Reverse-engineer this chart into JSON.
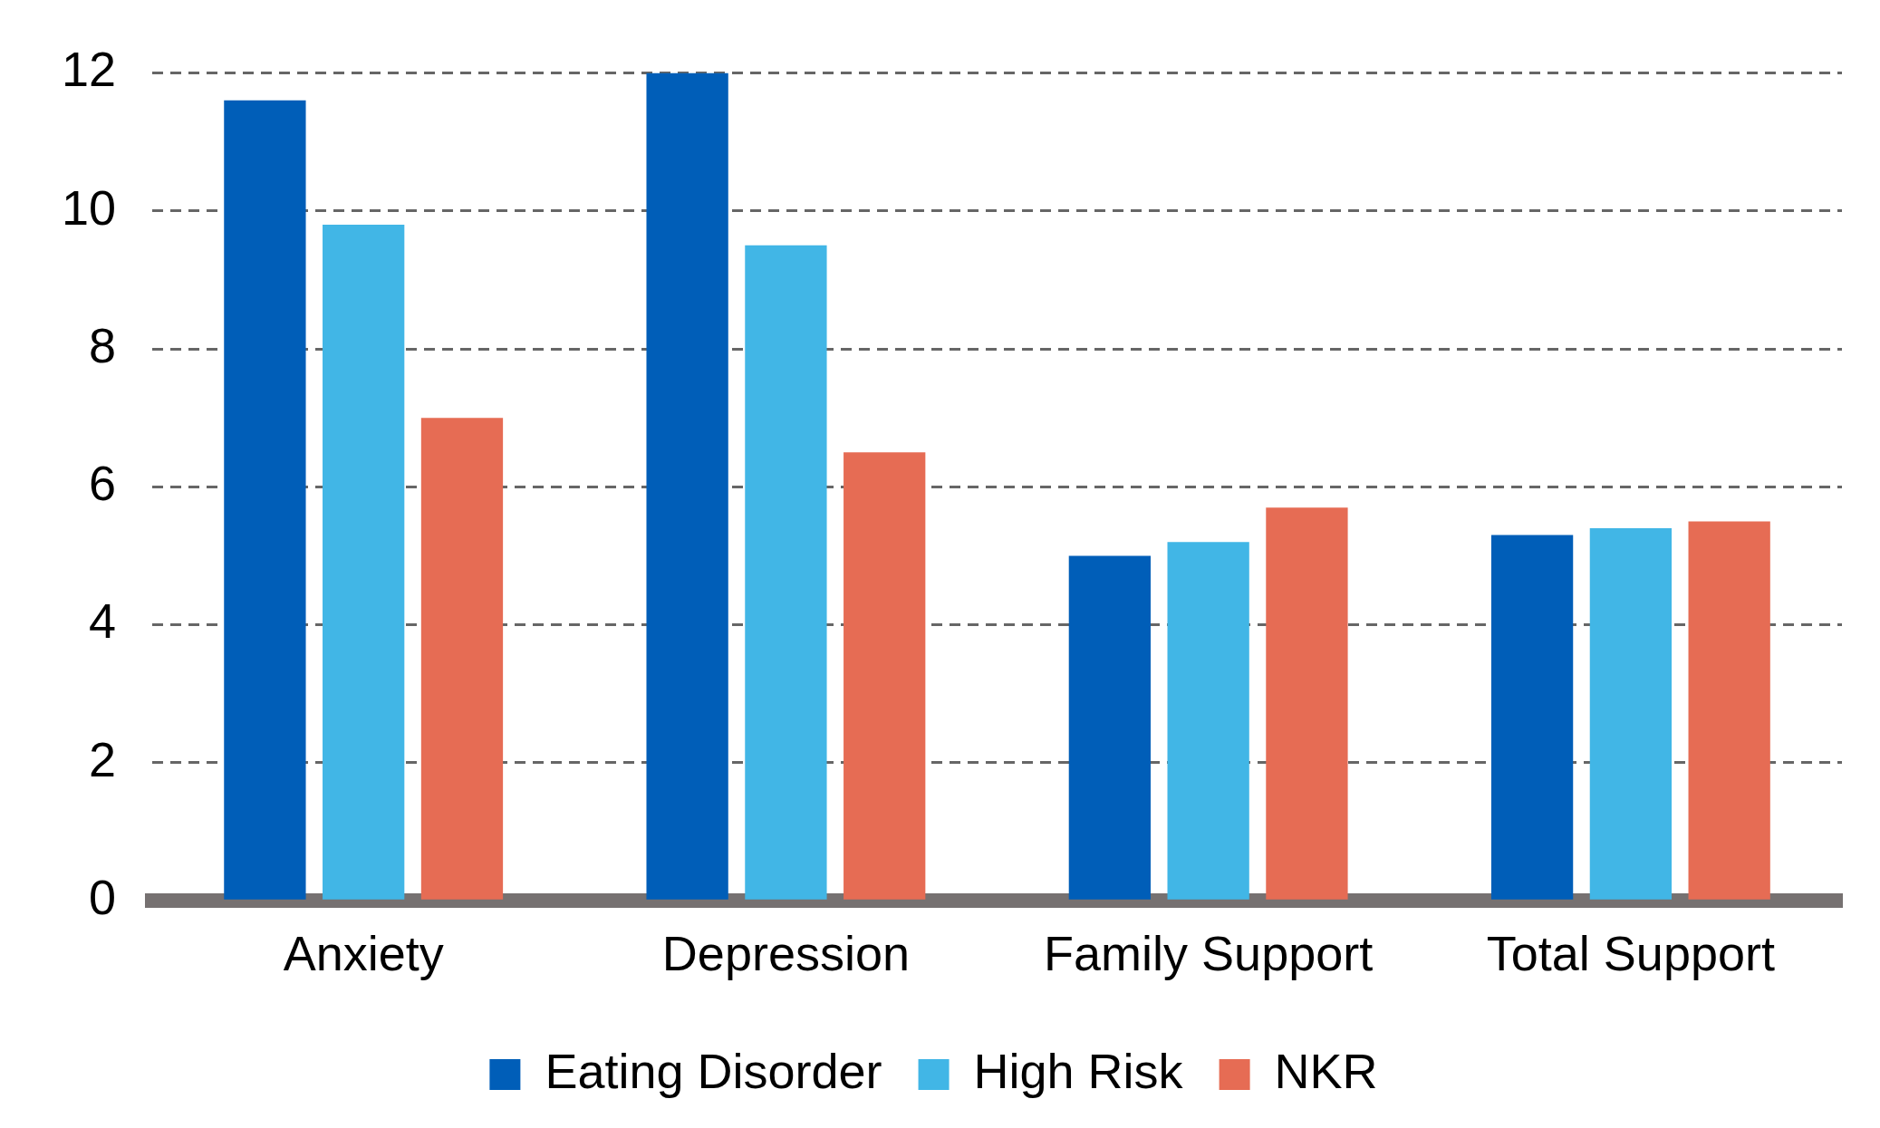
{
  "chart_data": {
    "type": "bar",
    "categories": [
      "Anxiety",
      "Depression",
      "Family Support",
      "Total Support"
    ],
    "series": [
      {
        "name": "Eating Disorder",
        "color": "#005eb8",
        "values": [
          11.6,
          12.0,
          5.0,
          5.3
        ]
      },
      {
        "name": "High Risk",
        "color": "#41b6e6",
        "values": [
          9.8,
          9.5,
          5.2,
          5.4
        ]
      },
      {
        "name": "NKR",
        "color": "#e66c54",
        "values": [
          7.0,
          6.5,
          5.7,
          5.5
        ]
      }
    ],
    "ylim": [
      0,
      12
    ],
    "yticks": [
      0,
      2,
      4,
      6,
      8,
      10,
      12
    ],
    "grid": "y",
    "legend": "bottom"
  }
}
